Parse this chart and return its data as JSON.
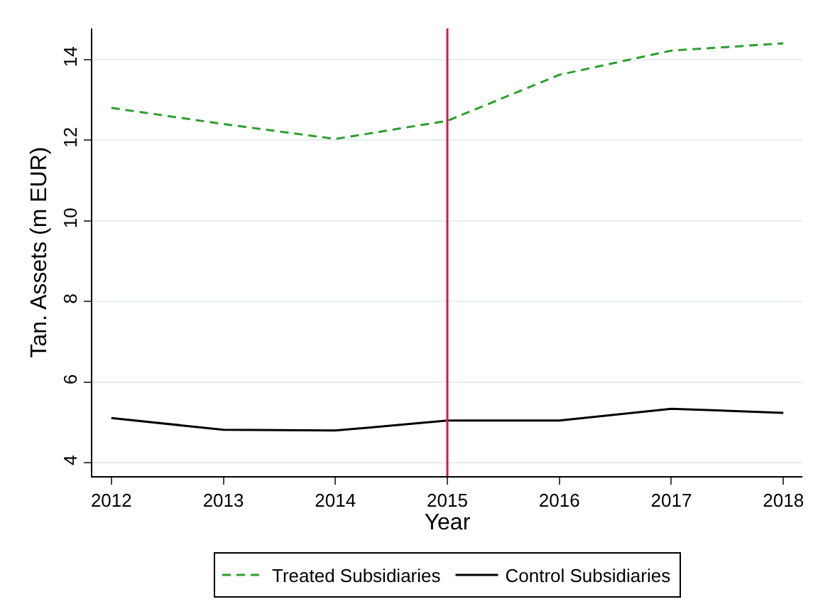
{
  "chart_data": {
    "type": "line",
    "xlabel": "Year",
    "ylabel": "Tan. Assets (m EUR)",
    "x": [
      2012,
      2013,
      2014,
      2015,
      2016,
      2017,
      2018
    ],
    "series": [
      {
        "name": "Treated Subsidiaries",
        "color": "#2ca02c",
        "line_style": "dashed",
        "values": [
          12.8,
          12.4,
          12.03,
          12.48,
          13.62,
          14.22,
          14.4
        ]
      },
      {
        "name": "Control Subsidiaries",
        "color": "#000000",
        "line_style": "solid",
        "values": [
          5.11,
          4.82,
          4.8,
          5.05,
          5.05,
          5.34,
          5.24
        ]
      }
    ],
    "xlim": [
      2011.83,
      2018.17
    ],
    "xticks": [
      2012,
      2013,
      2014,
      2015,
      2016,
      2017,
      2018
    ],
    "ylim": [
      3.67,
      14.77
    ],
    "yticks": [
      4,
      6,
      8,
      10,
      12,
      14
    ],
    "ref_lines": [
      {
        "axis": "x",
        "value": 2015,
        "color": "#d01c4b"
      }
    ],
    "grid": "y",
    "legend": "bottom",
    "marker": "none"
  }
}
